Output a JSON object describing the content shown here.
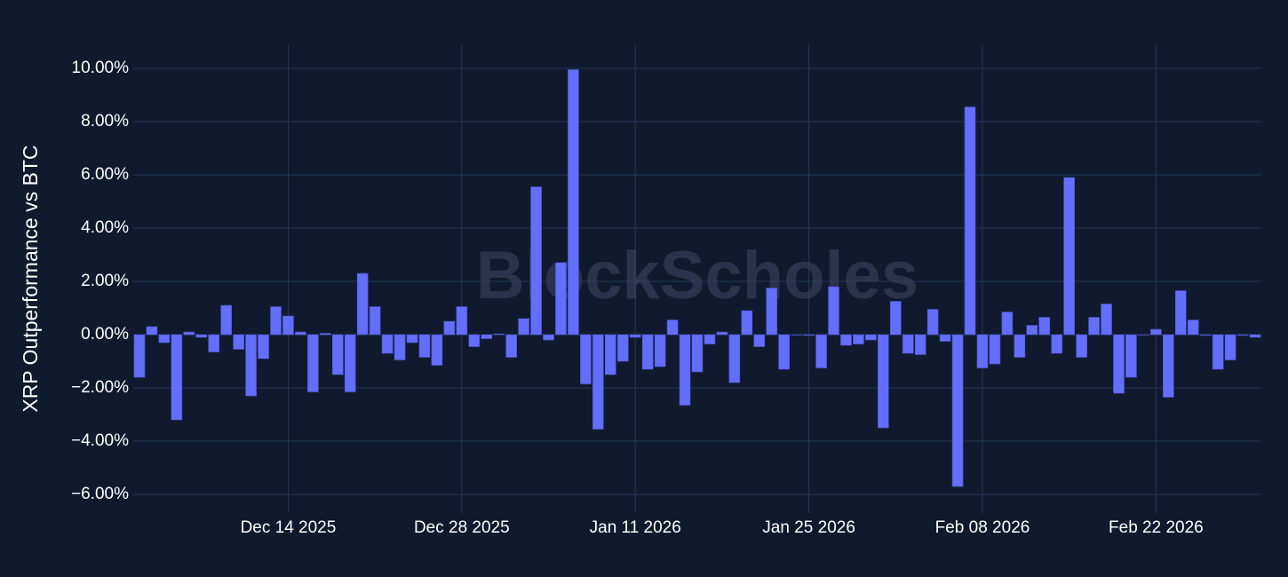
{
  "chart_data": {
    "type": "bar",
    "y_label": "XRP Outperformance vs BTC",
    "watermark": "BlockScholes",
    "color": "#636efa",
    "grid": true,
    "x": [
      "2025-12-02",
      "2025-12-03",
      "2025-12-04",
      "2025-12-05",
      "2025-12-06",
      "2025-12-07",
      "2025-12-08",
      "2025-12-09",
      "2025-12-10",
      "2025-12-11",
      "2025-12-12",
      "2025-12-13",
      "2025-12-14",
      "2025-12-15",
      "2025-12-16",
      "2025-12-17",
      "2025-12-18",
      "2025-12-19",
      "2025-12-20",
      "2025-12-21",
      "2025-12-22",
      "2025-12-23",
      "2025-12-24",
      "2025-12-25",
      "2025-12-26",
      "2025-12-27",
      "2025-12-28",
      "2025-12-29",
      "2025-12-30",
      "2025-12-31",
      "2026-01-01",
      "2026-01-02",
      "2026-01-03",
      "2026-01-04",
      "2026-01-05",
      "2026-01-06",
      "2026-01-07",
      "2026-01-08",
      "2026-01-09",
      "2026-01-10",
      "2026-01-11",
      "2026-01-12",
      "2026-01-13",
      "2026-01-14",
      "2026-01-15",
      "2026-01-16",
      "2026-01-17",
      "2026-01-18",
      "2026-01-19",
      "2026-01-20",
      "2026-01-21",
      "2026-01-22",
      "2026-01-23",
      "2026-01-24",
      "2026-01-25",
      "2026-01-26",
      "2026-01-27",
      "2026-01-28",
      "2026-01-29",
      "2026-01-30",
      "2026-01-31",
      "2026-02-01",
      "2026-02-02",
      "2026-02-03",
      "2026-02-04",
      "2026-02-05",
      "2026-02-06",
      "2026-02-07",
      "2026-02-08",
      "2026-02-09",
      "2026-02-10",
      "2026-02-11",
      "2026-02-12",
      "2026-02-13",
      "2026-02-14",
      "2026-02-15",
      "2026-02-16",
      "2026-02-17",
      "2026-02-18",
      "2026-02-19",
      "2026-02-20",
      "2026-02-21",
      "2026-02-22",
      "2026-02-23",
      "2026-02-24",
      "2026-02-25",
      "2026-02-26",
      "2026-02-27",
      "2026-02-28",
      "2026-03-01",
      "2026-03-02"
    ],
    "values": [
      -1.6,
      0.3,
      -0.3,
      -3.2,
      0.1,
      -0.1,
      -0.65,
      1.1,
      -0.55,
      -2.3,
      -0.9,
      1.05,
      0.7,
      0.1,
      -2.15,
      0.05,
      -1.5,
      -2.15,
      2.3,
      1.05,
      -0.7,
      -0.95,
      -0.3,
      -0.85,
      -1.15,
      0.5,
      1.05,
      -0.45,
      -0.15,
      0.03,
      -0.85,
      0.6,
      5.55,
      -0.2,
      2.7,
      9.95,
      -1.85,
      -3.55,
      -1.5,
      -1.0,
      -0.1,
      -1.3,
      -1.2,
      0.55,
      -2.65,
      -1.4,
      -0.35,
      0.1,
      -1.8,
      0.9,
      -0.45,
      1.75,
      -1.3,
      0.0,
      -0.03,
      -1.25,
      1.8,
      -0.4,
      -0.35,
      -0.2,
      -3.5,
      1.25,
      -0.7,
      -0.75,
      0.95,
      -0.25,
      -5.7,
      8.55,
      -1.25,
      -1.1,
      0.85,
      -0.85,
      0.35,
      0.65,
      -0.7,
      5.9,
      -0.85,
      0.65,
      1.15,
      -2.2,
      -1.6,
      0.0,
      0.2,
      -2.35,
      1.65,
      0.55,
      -0.03,
      -1.3,
      -0.95,
      -0.03,
      -0.1
    ],
    "xlim": [
      "2025-12-01T12:00:00Z",
      "2026-03-02T12:00:00Z"
    ],
    "xticks": [
      {
        "value": "2025-12-14",
        "label": "Dec 14 2025"
      },
      {
        "value": "2025-12-28",
        "label": "Dec 28 2025"
      },
      {
        "value": "2026-01-11",
        "label": "Jan 11 2026"
      },
      {
        "value": "2026-01-25",
        "label": "Jan 25 2026"
      },
      {
        "value": "2026-02-08",
        "label": "Feb 08 2026"
      },
      {
        "value": "2026-02-22",
        "label": "Feb 22 2026"
      }
    ],
    "ylim": [
      -6.7,
      10.9
    ],
    "yticks": [
      {
        "value": -6,
        "label": "−6.00%"
      },
      {
        "value": -4,
        "label": "−4.00%"
      },
      {
        "value": -2,
        "label": "−2.00%"
      },
      {
        "value": 0,
        "label": "0.00%"
      },
      {
        "value": 2,
        "label": "2.00%"
      },
      {
        "value": 4,
        "label": "4.00%"
      },
      {
        "value": 6,
        "label": "6.00%"
      },
      {
        "value": 8,
        "label": "8.00%"
      },
      {
        "value": 10,
        "label": "10.00%"
      }
    ]
  }
}
